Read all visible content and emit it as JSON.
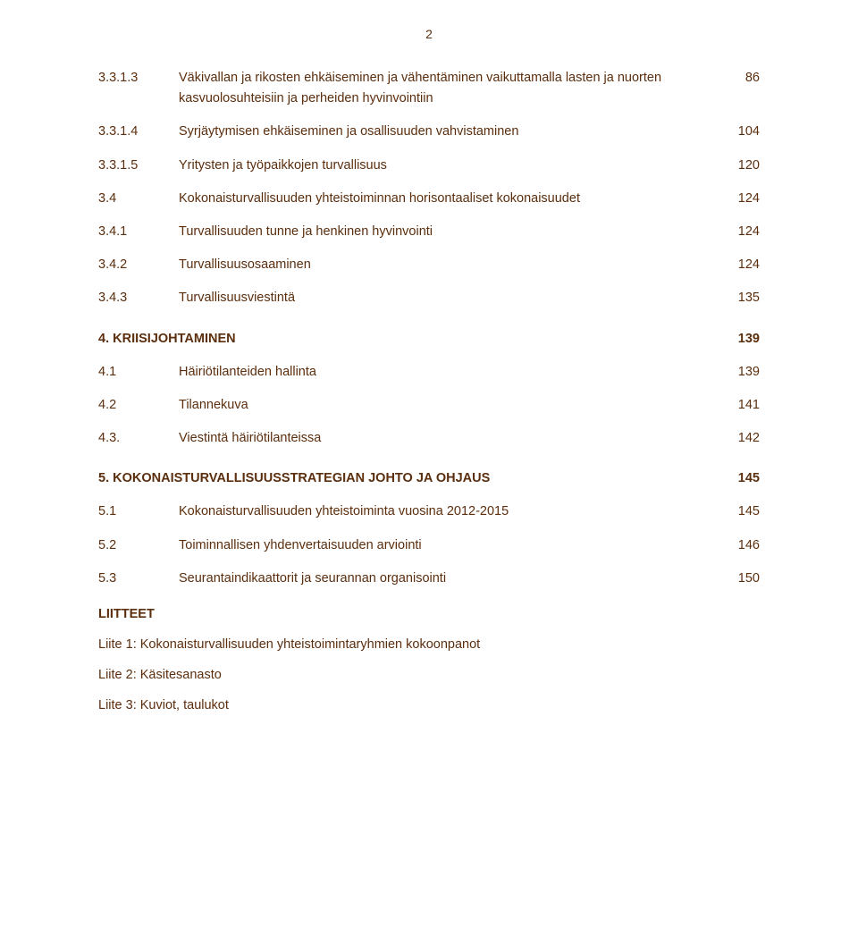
{
  "page_number": "2",
  "text_color": "#5b2e0e",
  "background_color": "#ffffff",
  "font_size_body": 14.5,
  "font_size_pagenum": 14,
  "entries": [
    {
      "id": "3.3.1.3",
      "title": "Väkivallan ja rikosten ehkäiseminen ja vähentäminen vaikuttamalla lasten ja nuorten kasvuolosuhteisiin ja perheiden hyvinvointiin",
      "page": "86",
      "bold": false
    },
    {
      "id": "3.3.1.4",
      "title": "Syrjäytymisen ehkäiseminen ja osallisuuden vahvistaminen",
      "page": "104",
      "bold": false
    },
    {
      "id": "3.3.1.5",
      "title": "Yritysten ja työpaikkojen turvallisuus",
      "page": "120",
      "bold": false
    },
    {
      "id": "3.4",
      "title": "Kokonaisturvallisuuden yhteistoiminnan horisontaaliset kokonaisuudet",
      "page": "124",
      "bold": false
    },
    {
      "id": "3.4.1",
      "title": "Turvallisuuden tunne ja henkinen hyvinvointi",
      "page": "124",
      "bold": false
    },
    {
      "id": "3.4.2",
      "title": "Turvallisuusosaaminen",
      "page": "124",
      "bold": false
    },
    {
      "id": "3.4.3",
      "title": "Turvallisuusviestintä",
      "page": "135",
      "bold": false
    },
    {
      "id": "4. KRIISIJOHTAMINEN",
      "title": "",
      "page": "139",
      "bold": true,
      "fullrow": true
    },
    {
      "id": "4.1",
      "title": "Häiriötilanteiden hallinta",
      "page": "139",
      "bold": false
    },
    {
      "id": "4.2",
      "title": "Tilannekuva",
      "page": "141",
      "bold": false
    },
    {
      "id": "4.3.",
      "title": "Viestintä häiriötilanteissa",
      "page": "142",
      "bold": false
    },
    {
      "id": "5. KOKONAISTURVALLISUUSSTRATEGIAN JOHTO JA OHJAUS",
      "title": "",
      "page": "145",
      "bold": true,
      "fullrow": true
    },
    {
      "id": "5.1",
      "title": "Kokonaisturvallisuuden yhteistoiminta vuosina 2012-2015",
      "page": "145",
      "bold": false
    },
    {
      "id": "5.2",
      "title": "Toiminnallisen yhdenvertaisuuden arviointi",
      "page": "146",
      "bold": false
    },
    {
      "id": "5.3",
      "title": "Seurantaindikaattorit ja seurannan organisointi",
      "page": "150",
      "bold": false
    }
  ],
  "liitteet_heading": "LIITTEET",
  "liitteet": [
    "Liite 1: Kokonaisturvallisuuden yhteistoimintaryhmien kokoonpanot",
    "Liite 2: Käsitesanasto",
    "Liite 3: Kuviot, taulukot"
  ]
}
